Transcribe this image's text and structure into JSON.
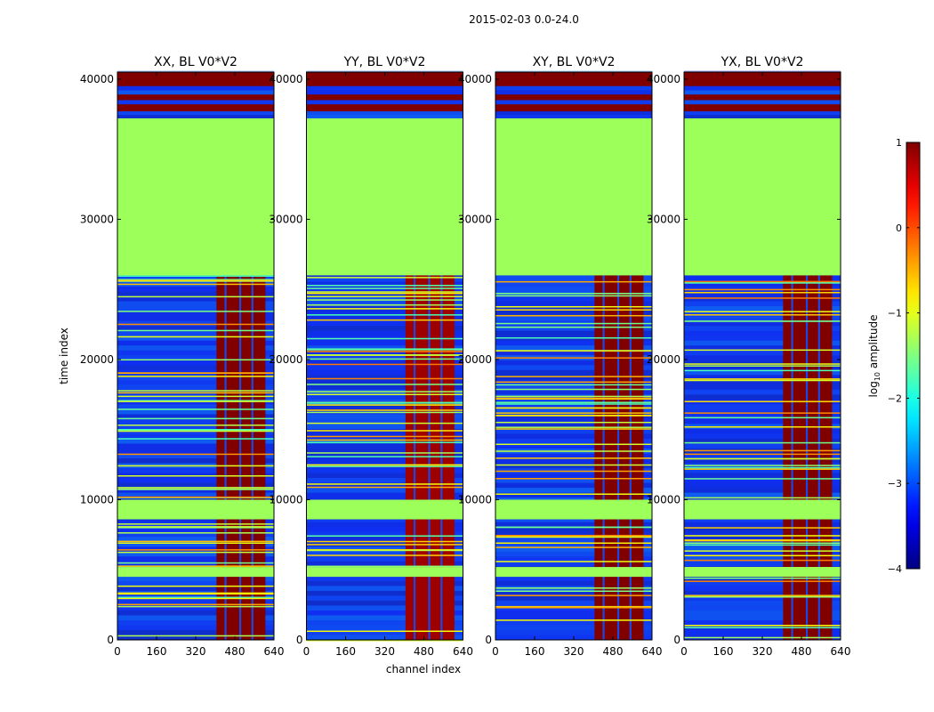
{
  "figure": {
    "suptitle": "2015-02-03 0.0-24.0",
    "xlabel": "channel index",
    "ylabel": "time index"
  },
  "chart_data": {
    "type": "heatmap",
    "title": "2015-02-03 0.0-24.0",
    "xlabel": "channel index",
    "ylabel": "time index",
    "xlim": [
      0,
      640
    ],
    "ylim": [
      0,
      40500
    ],
    "xticks": [
      0,
      160,
      320,
      480,
      640
    ],
    "yticks": [
      0,
      10000,
      20000,
      30000,
      40000
    ],
    "panels": [
      {
        "name": "XX, BL V0*V2",
        "band_level": 1.25
      },
      {
        "name": "YY, BL V0*V2",
        "band_level": 0.85
      },
      {
        "name": "XY, BL V0*V2",
        "band_level": 1.2
      },
      {
        "name": "YX, BL V0*V2",
        "band_level": 1.2
      }
    ],
    "colorbar": {
      "label_prefix": "log",
      "label_sub": "10",
      "label_suffix": " amplitude",
      "vmin": -4,
      "vmax": 1,
      "ticks": [
        -4,
        -3,
        -2,
        -1,
        0,
        1
      ],
      "tick_labels": [
        "−4",
        "−3",
        "−2",
        "−1",
        "0",
        "1"
      ],
      "colormap": "jet"
    },
    "regions": {
      "background_level": -3.3,
      "flagged_level": -1.0,
      "saturated_level": 1.0,
      "flagged_time_ranges": [
        [
          26000,
          37200
        ],
        [
          8600,
          10000
        ],
        [
          4500,
          5200
        ]
      ],
      "saturated_time_ranges": [
        [
          39500,
          40500
        ],
        [
          38500,
          38900
        ],
        [
          37700,
          38200
        ]
      ],
      "band_channel_range": [
        405,
        605
      ],
      "band_gap_channels": [
        [
          438,
          446
        ],
        [
          498,
          506
        ],
        [
          548,
          556
        ]
      ]
    }
  },
  "colors": {
    "flagged": "#9cff5a",
    "saturated": "#800000",
    "background": "#1848e8"
  }
}
